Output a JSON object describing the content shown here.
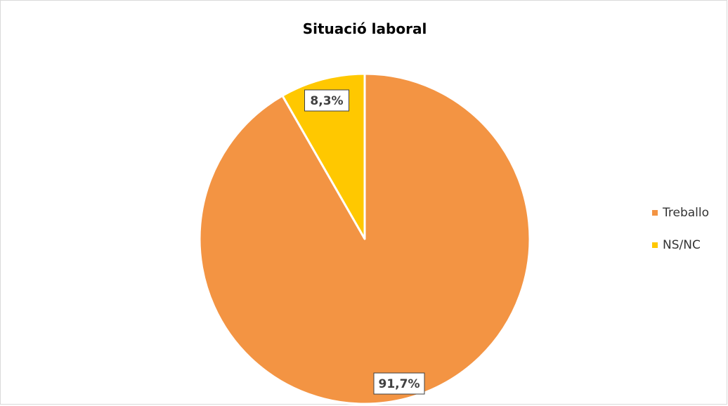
{
  "chart_data": {
    "type": "pie",
    "title": "Situació laboral",
    "categories": [
      "Treballo",
      "NS/NC"
    ],
    "values": [
      91.7,
      8.3
    ],
    "data_labels": [
      "91,7%",
      "8,3%"
    ],
    "colors": [
      "#F39443",
      "#FFC800"
    ],
    "legend_position": "right"
  }
}
